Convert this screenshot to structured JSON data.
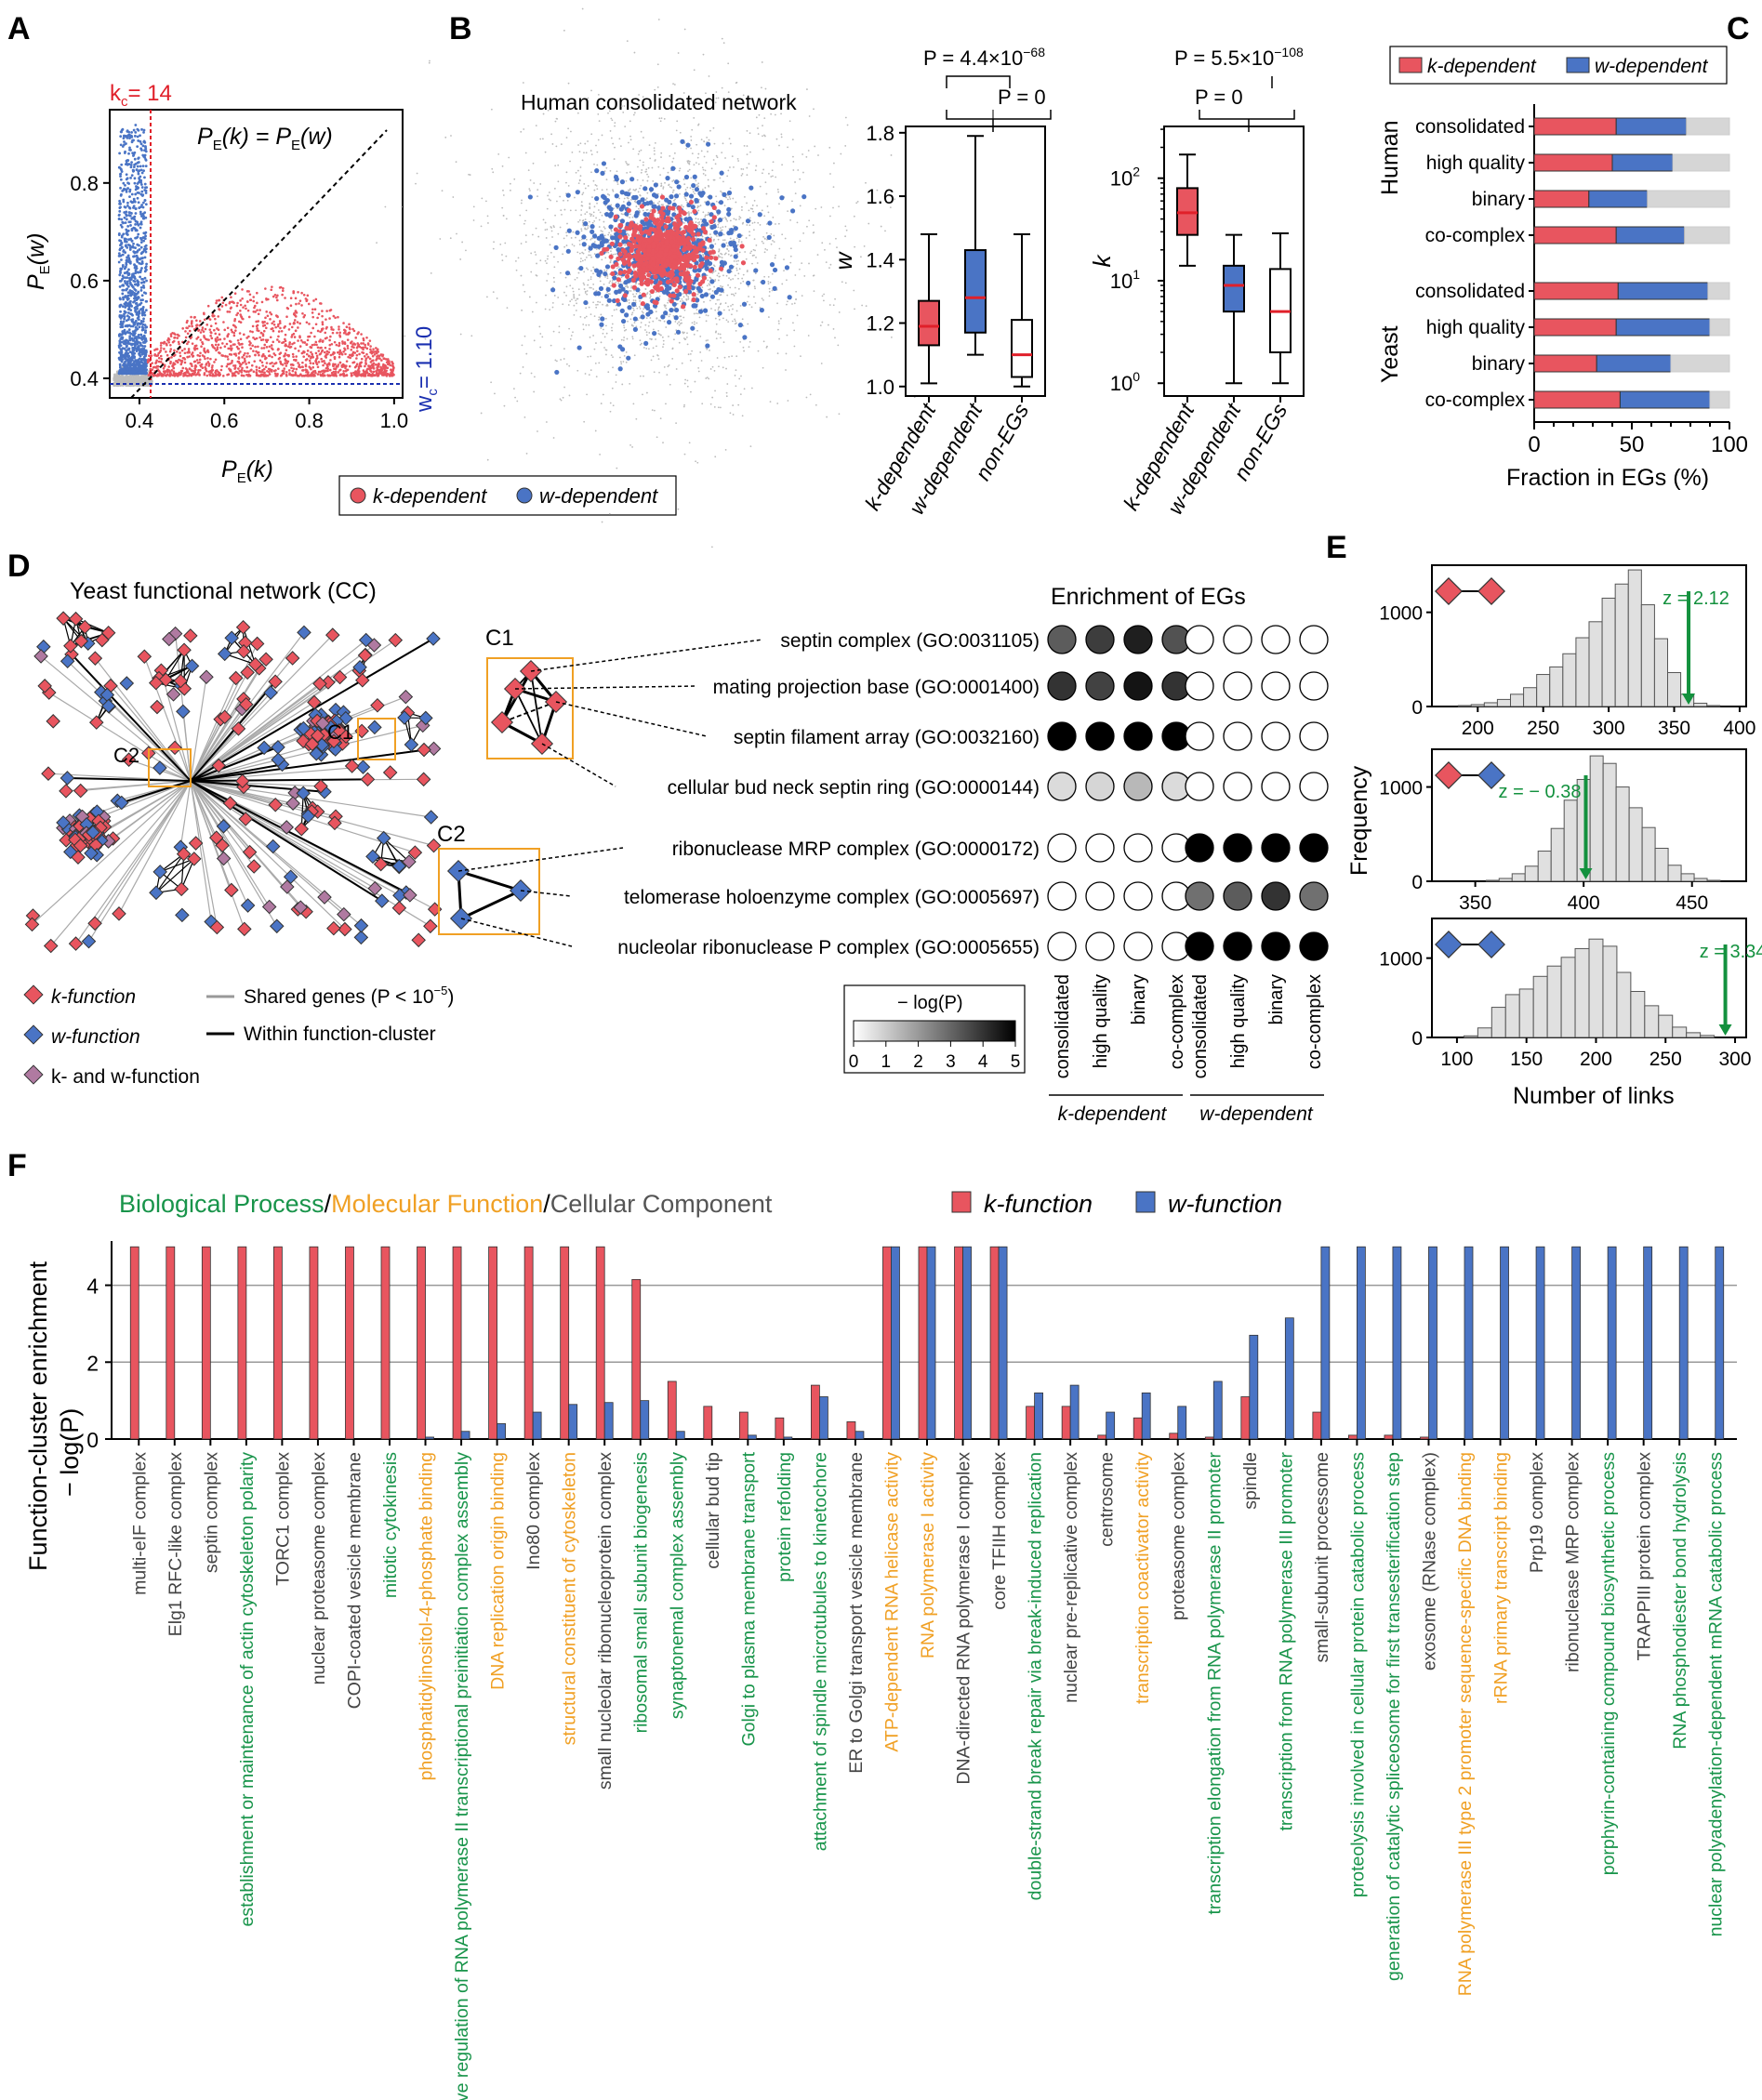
{
  "colors": {
    "k": "#e8555f",
    "w": "#4a74c5",
    "kw": "#b07aa1",
    "bp": "#18944a",
    "mf": "#f0a024",
    "cc": "#444444",
    "grey": "#c8c8c8",
    "red": "#e0202a",
    "blue": "#1a2fb0",
    "green": "#13913e"
  },
  "legend_ab": {
    "k": "k-dependent",
    "w": "w-dependent"
  },
  "panel_a": {
    "label": "A",
    "kc_label": "k",
    "kc_sub": "c",
    "kc_val": "= 14",
    "wc_label": "w",
    "wc_sub": "c",
    "wc_val": "= 1.10",
    "diag_label": "P",
    "diag_sub1": "E",
    "diag_mid": "(k) = P",
    "diag_sub2": "E",
    "diag_end": "(w)",
    "xlabel": "P",
    "xlabel_sub": "E",
    "xlabel_end": "(k)",
    "ylabel": "P",
    "ylabel_sub": "E",
    "ylabel_end": "(w)",
    "xticks": [
      "0.4",
      "0.6",
      "0.8",
      "1.0"
    ],
    "yticks": [
      "0.4",
      "0.6",
      "0.8"
    ]
  },
  "panel_b": {
    "label": "B",
    "network_title": "Human consolidated network",
    "w_plot": {
      "ylabel": "w",
      "yticks": [
        "1.0",
        "1.2",
        "1.4",
        "1.6",
        "1.8"
      ],
      "p1": "P = 4.4×10",
      "p1_exp": "−68",
      "p2": "P = 0"
    },
    "k_plot": {
      "ylabel": "k",
      "yticks": [
        "10",
        "10",
        "10"
      ],
      "yexp": [
        "0",
        "1",
        "2"
      ],
      "p1": "P = 5.5×10",
      "p1_exp": "−108",
      "p2": "P = 0"
    },
    "categories": [
      "k-dependent",
      "w-dependent",
      "non-EGs"
    ]
  },
  "panel_c": {
    "label": "C",
    "legend": [
      "k-dependent",
      "w-dependent"
    ],
    "groups": [
      "Human",
      "Yeast"
    ],
    "rows": [
      "consolidated",
      "high quality",
      "binary",
      "co-complex",
      "consolidated",
      "high quality",
      "binary",
      "co-complex"
    ],
    "xticks": [
      "0",
      "50",
      "100"
    ],
    "xlabel": "Fraction in EGs (%)"
  },
  "panel_d": {
    "label": "D",
    "title": "Yeast functional network (CC)",
    "c1": "C1",
    "c2": "C2",
    "enrich_title": "Enrichment of EGs",
    "terms": [
      "septin complex (GO:0031105)",
      "mating projection base (GO:0001400)",
      "septin filament array (GO:0032160)",
      "cellular bud neck septin ring (GO:0000144)",
      "ribonuclease MRP complex (GO:0000172)",
      "telomerase holoenzyme complex (GO:0005697)",
      "nucleolar ribonuclease P complex (GO:0005655)"
    ],
    "cols": [
      "consolidated",
      "high quality",
      "binary",
      "co-complex",
      "consolidated",
      "high quality",
      "binary",
      "co-complex"
    ],
    "col_groups": [
      "k-dependent",
      "w-dependent"
    ],
    "cbar_title": "− log(P)",
    "cbar_ticks": [
      "0",
      "1",
      "2",
      "3",
      "4",
      "5"
    ],
    "legend": {
      "k": "k-function",
      "w": "w-function",
      "kw": "k- and w-function",
      "shared": "Shared genes (P < 10",
      "shared_exp": "−5",
      "shared_end": ")",
      "within": "Within function-cluster"
    }
  },
  "panel_e": {
    "label": "E",
    "ylabel": "Frequency",
    "xlabel": "Number of links",
    "z": [
      "z = 2.12",
      "z = − 0.38",
      "z = 3.34"
    ],
    "xticks": [
      [
        "200",
        "250",
        "300",
        "350",
        "400"
      ],
      [
        "350",
        "400",
        "450"
      ],
      [
        "100",
        "150",
        "200",
        "250",
        "300"
      ]
    ],
    "yticks": [
      "0",
      "1000"
    ]
  },
  "panel_f": {
    "label": "F",
    "ylabel1": "Function-cluster enrichment",
    "ylabel2": "− log(P)",
    "leg_bp": "Biological Process",
    "leg_sep": "/",
    "leg_mf": "Molecular Function",
    "leg_cc": "Cellular Component",
    "leg_k": "k-function",
    "leg_w": "w-function",
    "yticks": [
      "0",
      "2",
      "4"
    ]
  },
  "chart_data": [
    {
      "type": "scatter",
      "panel": "A",
      "xlabel": "PE(k)",
      "ylabel": "PE(w)",
      "xlim": [
        0.33,
        1.02
      ],
      "ylim": [
        0.36,
        0.95
      ],
      "threshold_k": 14,
      "threshold_w": 1.1,
      "series": [
        {
          "name": "k-dependent",
          "x_range": [
            0.42,
            1.0
          ],
          "y_range": [
            0.4,
            0.62
          ]
        },
        {
          "name": "w-dependent",
          "x_range": [
            0.35,
            0.42
          ],
          "y_range": [
            0.41,
            0.93
          ]
        }
      ]
    },
    {
      "type": "box",
      "panel": "B-w",
      "ylabel": "w",
      "ylim": [
        0.97,
        1.82
      ],
      "categories": [
        "k-dependent",
        "w-dependent",
        "non-EGs"
      ],
      "boxes": [
        {
          "min": 1.01,
          "q1": 1.13,
          "median": 1.19,
          "q3": 1.27,
          "max": 1.48
        },
        {
          "min": 1.1,
          "q1": 1.17,
          "median": 1.28,
          "q3": 1.43,
          "max": 1.79
        },
        {
          "min": 1.0,
          "q1": 1.03,
          "median": 1.1,
          "q3": 1.21,
          "max": 1.48
        }
      ]
    },
    {
      "type": "box",
      "panel": "B-k",
      "ylabel": "k",
      "yscale": "log",
      "ylim": [
        0.75,
        320
      ],
      "categories": [
        "k-dependent",
        "w-dependent",
        "non-EGs"
      ],
      "boxes": [
        {
          "min": 14,
          "q1": 28,
          "median": 46,
          "q3": 80,
          "max": 170
        },
        {
          "min": 1,
          "q1": 5,
          "median": 9,
          "q3": 14,
          "max": 28
        },
        {
          "min": 1,
          "q1": 2,
          "median": 5,
          "q3": 13,
          "max": 29
        }
      ]
    },
    {
      "type": "bar",
      "panel": "C",
      "orientation": "horizontal-stacked",
      "xlabel": "Fraction in EGs (%)",
      "xlim": [
        0,
        100
      ],
      "categories": [
        "Human consolidated",
        "Human high quality",
        "Human binary",
        "Human co-complex",
        "Yeast consolidated",
        "Yeast high quality",
        "Yeast binary",
        "Yeast co-complex"
      ],
      "series": [
        {
          "name": "k-dependent",
          "values": [
            42,
            40,
            28,
            42,
            43,
            42,
            32,
            44
          ]
        },
        {
          "name": "w-dependent",
          "values": [
            36,
            31,
            30,
            35,
            46,
            48,
            38,
            46
          ]
        },
        {
          "name": "",
          "values": [
            22,
            29,
            42,
            23,
            11,
            10,
            30,
            10
          ]
        }
      ]
    },
    {
      "type": "heatmap",
      "panel": "D",
      "colorbar_range": [
        0,
        5
      ],
      "rows": [
        "septin complex (GO:0031105)",
        "mating projection base (GO:0001400)",
        "septin filament array (GO:0032160)",
        "cellular bud neck septin ring (GO:0000144)",
        "ribonuclease MRP complex (GO:0000172)",
        "telomerase holoenzyme complex (GO:0005697)",
        "nucleolar ribonuclease P complex (GO:0005655)"
      ],
      "values": [
        [
          3.2,
          3.8,
          4.4,
          3.4,
          0,
          0,
          0,
          0
        ],
        [
          4.0,
          3.7,
          4.6,
          4.0,
          0,
          0,
          0,
          0
        ],
        [
          5,
          5,
          5,
          5,
          0,
          0,
          0,
          0
        ],
        [
          0.7,
          0.8,
          1.4,
          0.7,
          0,
          0,
          0,
          0
        ],
        [
          0,
          0,
          0,
          0,
          5,
          5,
          5,
          5
        ],
        [
          0,
          0,
          0,
          0,
          2.8,
          3.2,
          4.0,
          2.8
        ],
        [
          0,
          0,
          0,
          0,
          5,
          5,
          5,
          5
        ]
      ]
    },
    {
      "type": "bar",
      "panel": "E1",
      "xlabel": "Number of links",
      "ylabel": "Frequency",
      "xlim": [
        165,
        405
      ],
      "ylim": [
        0,
        1500
      ],
      "bin_start": 185,
      "bin_width": 10,
      "values": [
        10,
        20,
        40,
        75,
        130,
        200,
        340,
        420,
        560,
        730,
        900,
        1150,
        1300,
        1450,
        1080,
        720,
        360,
        130,
        35,
        10
      ],
      "observed": 361,
      "z": 2.12
    },
    {
      "type": "bar",
      "panel": "E2",
      "xlim": [
        330,
        475
      ],
      "ylim": [
        0,
        1400
      ],
      "bin_start": 355,
      "bin_width": 6,
      "values": [
        10,
        30,
        80,
        160,
        320,
        560,
        860,
        1080,
        1330,
        1250,
        1000,
        780,
        570,
        350,
        170,
        80,
        30,
        10
      ],
      "observed": 401,
      "z": -0.38
    },
    {
      "type": "bar",
      "panel": "E3",
      "xlim": [
        82,
        308
      ],
      "ylim": [
        0,
        1500
      ],
      "bin_start": 105,
      "bin_width": 10,
      "values": [
        20,
        120,
        380,
        540,
        610,
        770,
        900,
        1010,
        1120,
        1240,
        1150,
        820,
        580,
        400,
        280,
        130,
        60,
        25
      ],
      "observed": 293,
      "z": 3.34
    },
    {
      "type": "bar",
      "panel": "F",
      "ylabel": "Function-cluster enrichment − log(P)",
      "ylim": [
        0,
        5
      ],
      "categories": [
        "multi-eIF complex",
        "Elg1 RFC-like complex",
        "septin complex",
        "establishment or maintenance of actin cytoskeleton polarity",
        "TORC1 complex",
        "nuclear proteasome complex",
        "COPI-coated vesicle membrane",
        "mitotic cytokinesis",
        "phosphatidylinositol-4-phosphate binding",
        "positive regulation of RNA polymerase II transcriptional preinitiation complex assembly",
        "DNA replication origin binding",
        "Ino80 complex",
        "structural constituent of cytoskeleton",
        "small nucleolar ribonucleoprotein complex",
        "ribosomal small subunit biogenesis",
        "synaptonemal complex assembly",
        "cellular bud tip",
        "Golgi to plasma membrane transport",
        "protein refolding",
        "attachment of spindle microtubules to kinetochore",
        "ER to Golgi transport vesicle membrane",
        "ATP-dependent RNA helicase activity",
        "RNA polymerase I activity",
        "DNA-directed RNA polymerase I complex",
        "core TFIIH complex",
        "double-strand break repair via break-induced replication",
        "nuclear pre-replicative complex",
        "centrosome",
        "transcription coactivator activity",
        "proteasome complex",
        "transcription elongation from RNA polymerase II promoter",
        "spindle",
        "transcription from RNA polymerase III promoter",
        "small-subunit processome",
        "proteolysis involved in cellular protein catabolic process",
        "generation of catalytic spliceosome for first transesterification step",
        "exosome (RNase complex)",
        "RNA polymerase III type 2 promoter sequence-specific DNA binding",
        "rRNA primary transcript binding",
        "Prp19 complex",
        "ribonuclease MRP complex",
        "porphyrin-containing compound biosynthetic process",
        "TRAPPIII protein complex",
        "RNA phosphodiester bond hydrolysis",
        "nuclear polyadenylation-dependent mRNA catabolic process"
      ],
      "category_types": [
        "cc",
        "cc",
        "cc",
        "bp",
        "cc",
        "cc",
        "cc",
        "bp",
        "mf",
        "bp",
        "mf",
        "cc",
        "mf",
        "cc",
        "bp",
        "bp",
        "cc",
        "bp",
        "bp",
        "bp",
        "cc",
        "mf",
        "mf",
        "cc",
        "cc",
        "bp",
        "cc",
        "cc",
        "mf",
        "cc",
        "bp",
        "cc",
        "bp",
        "cc",
        "bp",
        "bp",
        "cc",
        "mf",
        "mf",
        "cc",
        "cc",
        "bp",
        "cc",
        "bp",
        "bp"
      ],
      "series": [
        {
          "name": "k-function",
          "values": [
            5,
            5,
            5,
            5,
            5,
            5,
            5,
            5,
            5,
            5,
            5,
            5,
            5,
            5,
            4.15,
            1.5,
            0.85,
            0.7,
            0.55,
            1.4,
            0.45,
            5,
            5,
            5,
            5,
            0.85,
            0.85,
            0.1,
            0.55,
            0.15,
            0.05,
            1.1,
            0,
            0.7,
            0.1,
            0.1,
            0.05,
            0,
            0,
            0,
            0,
            0,
            0,
            0,
            0
          ]
        },
        {
          "name": "w-function",
          "values": [
            0,
            0,
            0,
            0,
            0,
            0,
            0,
            0,
            0.05,
            0.2,
            0.4,
            0.7,
            0.9,
            0.95,
            1.0,
            0.2,
            0,
            0.1,
            0.05,
            1.1,
            0.2,
            5,
            5,
            5,
            5,
            1.2,
            1.4,
            0.7,
            1.2,
            0.85,
            1.5,
            2.7,
            3.15,
            5,
            5,
            5,
            5,
            5,
            5,
            5,
            5,
            5,
            5,
            5,
            5
          ]
        }
      ]
    }
  ]
}
